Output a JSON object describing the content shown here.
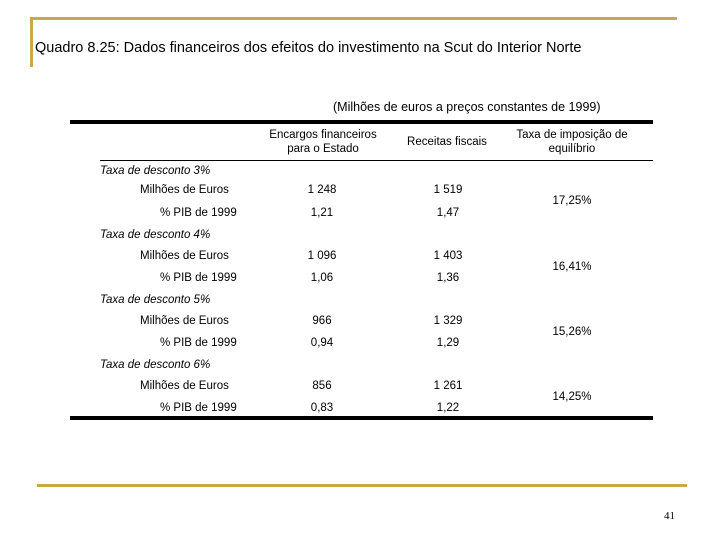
{
  "title": "Quadro 8.25: Dados financeiros dos efeitos do investimento na Scut do Interior Norte",
  "units_note": "(Milhões de euros a preços constantes de 1999)",
  "headers": {
    "col1": "Encargos financeiros para o Estado",
    "col2": "Receitas fiscais",
    "col3": "Taxa de imposição de equilíbrio"
  },
  "sections": [
    {
      "label": "Taxa de desconto 3%",
      "row1_label": "Milhões de Euros",
      "row2_label": "% PIB de 1999",
      "encargos_meur": "1 248",
      "receitas_meur": "1 519",
      "encargos_pib": "1,21",
      "receitas_pib": "1,47",
      "taxa": "17,25%"
    },
    {
      "label": "Taxa de desconto 4%",
      "row1_label": "Milhões de Euros",
      "row2_label": "% PIB de 1999",
      "encargos_meur": "1 096",
      "receitas_meur": "1 403",
      "encargos_pib": "1,06",
      "receitas_pib": "1,36",
      "taxa": "16,41%"
    },
    {
      "label": "Taxa de desconto 5%",
      "row1_label": "Milhões de Euros",
      "row2_label": "% PIB de 1999",
      "encargos_meur": "966",
      "receitas_meur": "1 329",
      "encargos_pib": "0,94",
      "receitas_pib": "1,29",
      "taxa": "15,26%"
    },
    {
      "label": "Taxa de desconto 6%",
      "row1_label": "Milhões de Euros",
      "row2_label": "% PIB de 1999",
      "encargos_meur": "856",
      "receitas_meur": "1 261",
      "encargos_pib": "0,83",
      "receitas_pib": "1,22",
      "taxa": "14,25%"
    }
  ],
  "page_number": "41",
  "colors": {
    "accent_rule": "#c8a84b",
    "text": "#000000"
  }
}
